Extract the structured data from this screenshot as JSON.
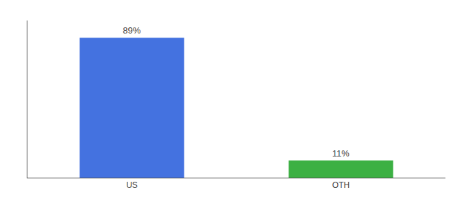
{
  "chart_data": {
    "type": "bar",
    "categories": [
      "US",
      "OTH"
    ],
    "values": [
      89,
      11
    ],
    "value_labels": [
      "89%",
      "11%"
    ],
    "data_labels": true,
    "colors": [
      "#4472e0",
      "#3cb043"
    ],
    "ylim": [
      0,
      100
    ],
    "tick_labels": "x",
    "grid": false
  }
}
